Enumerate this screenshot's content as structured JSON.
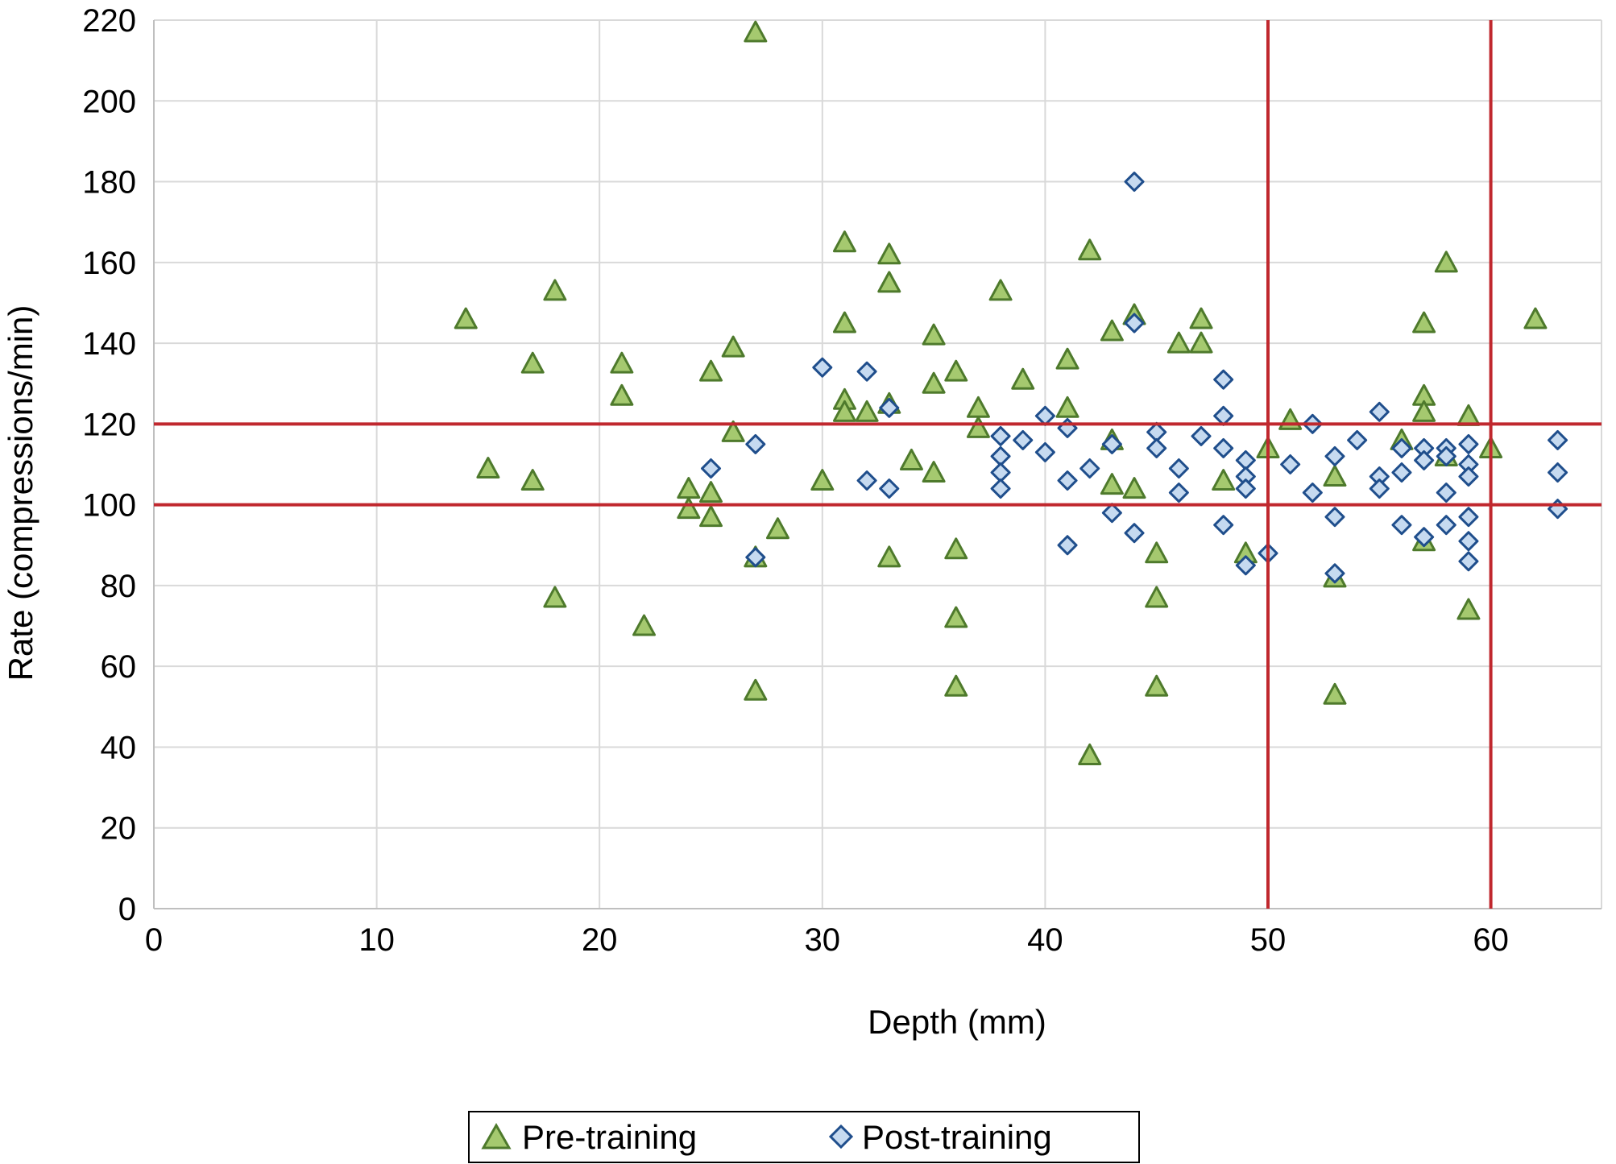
{
  "chart_data": {
    "type": "scatter",
    "title": "",
    "xlabel": "Depth (mm)",
    "ylabel": "Rate (compressions/min)",
    "xlim": [
      0,
      65
    ],
    "ylim": [
      0,
      220
    ],
    "xticks": [
      0,
      10,
      20,
      30,
      40,
      50,
      60
    ],
    "yticks": [
      0,
      20,
      40,
      60,
      80,
      100,
      120,
      140,
      160,
      180,
      200,
      220
    ],
    "grid": true,
    "legend_position": "bottom-center",
    "reference_lines": {
      "color": "#c0282e",
      "horizontal": [
        100,
        120
      ],
      "vertical": [
        50,
        60
      ]
    },
    "colors": {
      "pre_stroke": "#4e7a2c",
      "pre_fill": "#a5c96f",
      "post_stroke": "#1f4e8c",
      "post_fill": "#c6daf0",
      "grid": "#d9d9d9"
    },
    "series": [
      {
        "name": "Pre-training",
        "marker": "triangle",
        "points": [
          [
            27,
            217
          ],
          [
            14,
            146
          ],
          [
            15,
            109
          ],
          [
            17,
            135
          ],
          [
            17,
            106
          ],
          [
            18,
            153
          ],
          [
            18,
            77
          ],
          [
            21,
            135
          ],
          [
            21,
            127
          ],
          [
            22,
            70
          ],
          [
            24,
            104
          ],
          [
            24,
            99
          ],
          [
            25,
            133
          ],
          [
            25,
            103
          ],
          [
            25,
            97
          ],
          [
            26,
            139
          ],
          [
            26,
            118
          ],
          [
            27,
            54
          ],
          [
            27,
            87
          ],
          [
            28,
            94
          ],
          [
            30,
            106
          ],
          [
            31,
            165
          ],
          [
            31,
            145
          ],
          [
            31,
            126
          ],
          [
            31,
            123
          ],
          [
            32,
            123
          ],
          [
            33,
            162
          ],
          [
            33,
            155
          ],
          [
            33,
            125
          ],
          [
            33,
            87
          ],
          [
            34,
            111
          ],
          [
            35,
            142
          ],
          [
            35,
            130
          ],
          [
            35,
            108
          ],
          [
            36,
            133
          ],
          [
            36,
            89
          ],
          [
            36,
            72
          ],
          [
            36,
            55
          ],
          [
            37,
            124
          ],
          [
            37,
            119
          ],
          [
            38,
            153
          ],
          [
            39,
            131
          ],
          [
            41,
            136
          ],
          [
            41,
            124
          ],
          [
            42,
            163
          ],
          [
            42,
            38
          ],
          [
            43,
            143
          ],
          [
            43,
            116
          ],
          [
            43,
            105
          ],
          [
            44,
            147
          ],
          [
            44,
            104
          ],
          [
            45,
            88
          ],
          [
            45,
            77
          ],
          [
            45,
            55
          ],
          [
            46,
            140
          ],
          [
            47,
            146
          ],
          [
            47,
            140
          ],
          [
            48,
            106
          ],
          [
            49,
            88
          ],
          [
            50,
            114
          ],
          [
            51,
            121
          ],
          [
            53,
            107
          ],
          [
            53,
            82
          ],
          [
            53,
            53
          ],
          [
            56,
            116
          ],
          [
            57,
            145
          ],
          [
            57,
            127
          ],
          [
            57,
            123
          ],
          [
            57,
            91
          ],
          [
            58,
            160
          ],
          [
            58,
            112
          ],
          [
            59,
            122
          ],
          [
            59,
            74
          ],
          [
            60,
            114
          ],
          [
            62,
            146
          ]
        ]
      },
      {
        "name": "Post-training",
        "marker": "diamond",
        "points": [
          [
            25,
            109
          ],
          [
            27,
            115
          ],
          [
            27,
            87
          ],
          [
            30,
            134
          ],
          [
            32,
            133
          ],
          [
            32,
            106
          ],
          [
            33,
            124
          ],
          [
            33,
            104
          ],
          [
            38,
            117
          ],
          [
            38,
            112
          ],
          [
            38,
            108
          ],
          [
            38,
            104
          ],
          [
            39,
            116
          ],
          [
            40,
            122
          ],
          [
            40,
            113
          ],
          [
            41,
            119
          ],
          [
            41,
            106
          ],
          [
            41,
            90
          ],
          [
            42,
            109
          ],
          [
            43,
            115
          ],
          [
            43,
            98
          ],
          [
            44,
            180
          ],
          [
            44,
            145
          ],
          [
            44,
            93
          ],
          [
            45,
            118
          ],
          [
            45,
            114
          ],
          [
            46,
            109
          ],
          [
            46,
            103
          ],
          [
            47,
            117
          ],
          [
            48,
            131
          ],
          [
            48,
            122
          ],
          [
            48,
            114
          ],
          [
            48,
            95
          ],
          [
            49,
            111
          ],
          [
            49,
            107
          ],
          [
            49,
            104
          ],
          [
            49,
            85
          ],
          [
            50,
            88
          ],
          [
            51,
            110
          ],
          [
            52,
            120
          ],
          [
            52,
            103
          ],
          [
            53,
            112
          ],
          [
            53,
            97
          ],
          [
            53,
            83
          ],
          [
            54,
            116
          ],
          [
            55,
            123
          ],
          [
            55,
            107
          ],
          [
            55,
            104
          ],
          [
            56,
            114
          ],
          [
            56,
            108
          ],
          [
            56,
            95
          ],
          [
            57,
            114
          ],
          [
            57,
            111
          ],
          [
            57,
            92
          ],
          [
            58,
            114
          ],
          [
            58,
            112
          ],
          [
            58,
            103
          ],
          [
            58,
            95
          ],
          [
            59,
            115
          ],
          [
            59,
            110
          ],
          [
            59,
            107
          ],
          [
            59,
            97
          ],
          [
            59,
            91
          ],
          [
            59,
            86
          ],
          [
            63,
            116
          ],
          [
            63,
            108
          ],
          [
            63,
            99
          ]
        ]
      }
    ]
  }
}
